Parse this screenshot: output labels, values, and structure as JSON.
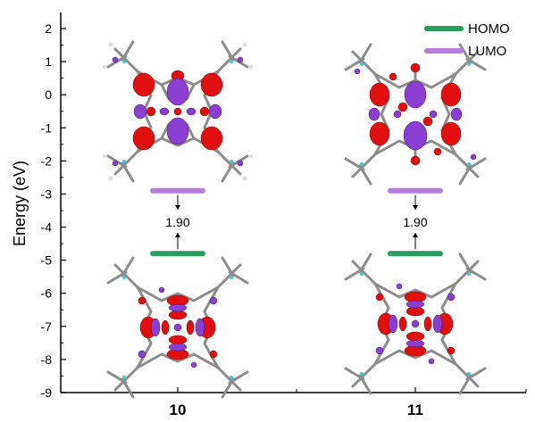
{
  "chart_data": {
    "type": "energy-level-diagram",
    "ylabel": "Energy (eV)",
    "ylim": [
      -9,
      2.4
    ],
    "yticks": [
      "2",
      "1",
      "0",
      "-1",
      "-2",
      "-3",
      "-4",
      "-5",
      "-6",
      "-7",
      "-8",
      "-9"
    ],
    "categories": [
      "10",
      "11"
    ],
    "legend": {
      "position": "top-right",
      "entries": [
        {
          "name": "HOMO",
          "color": "#2a9d5f"
        },
        {
          "name": "LUMO",
          "color": "#b57edc"
        }
      ]
    },
    "series": [
      {
        "name": "HOMO",
        "color": "#2a9d5f",
        "values": [
          -4.8,
          -4.8
        ]
      },
      {
        "name": "LUMO",
        "color": "#b57edc",
        "values": [
          -2.9,
          -2.9
        ]
      }
    ],
    "gaps": [
      {
        "category": "10",
        "label": "1.90"
      },
      {
        "category": "11",
        "label": "1.90"
      }
    ]
  }
}
